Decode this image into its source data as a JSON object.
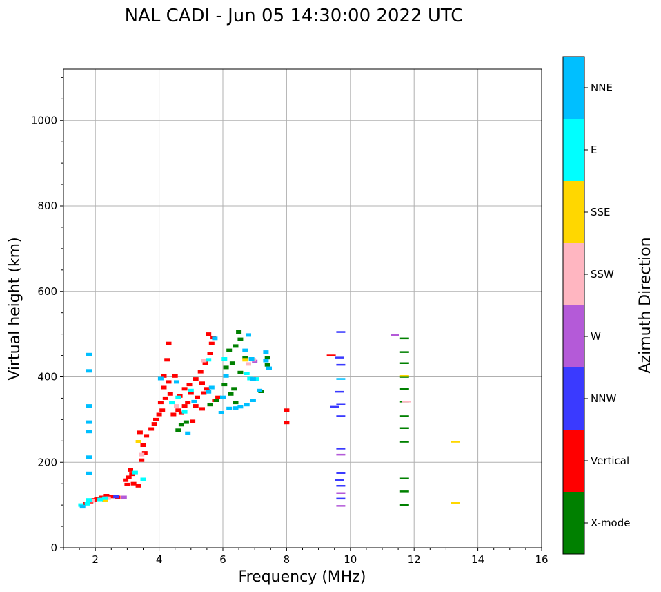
{
  "chart_data": {
    "type": "scatter",
    "title": "NAL CADI - Jun 05 14:30:00 2022 UTC",
    "xlabel": "Frequency (MHz)",
    "ylabel": "Virtual height (km)",
    "xlim": [
      1,
      16
    ],
    "ylim": [
      0,
      1120
    ],
    "xticks": [
      "2",
      "4",
      "6",
      "8",
      "10",
      "12",
      "14",
      "16"
    ],
    "yticks": [
      "0",
      "200",
      "400",
      "600",
      "800",
      "1000"
    ],
    "grid": true,
    "colorbar": {
      "label": "Azimuth Direction",
      "categories": [
        {
          "name": "X-mode",
          "color": "#008000"
        },
        {
          "name": "Vertical",
          "color": "#ff0000"
        },
        {
          "name": "NNW",
          "color": "#3a3aff"
        },
        {
          "name": "W",
          "color": "#b45ad8"
        },
        {
          "name": "SSW",
          "color": "#ffb6c1"
        },
        {
          "name": "SSE",
          "color": "#ffd700"
        },
        {
          "name": "E",
          "color": "#00ffff"
        },
        {
          "name": "NNE",
          "color": "#00bfff"
        }
      ]
    },
    "series": [
      {
        "name": "Vertical",
        "points": [
          [
            1.7,
            104
          ],
          [
            1.85,
            108
          ],
          [
            1.95,
            112
          ],
          [
            2.05,
            115
          ],
          [
            2.2,
            118
          ],
          [
            2.35,
            122
          ],
          [
            2.5,
            120
          ],
          [
            2.7,
            118
          ],
          [
            2.95,
            158
          ],
          [
            3.05,
            165
          ],
          [
            3.15,
            172
          ],
          [
            3.0,
            148
          ],
          [
            3.2,
            150
          ],
          [
            3.35,
            145
          ],
          [
            3.1,
            182
          ],
          [
            3.45,
            205
          ],
          [
            3.55,
            222
          ],
          [
            3.5,
            240
          ],
          [
            3.6,
            262
          ],
          [
            3.4,
            270
          ],
          [
            3.75,
            278
          ],
          [
            3.85,
            290
          ],
          [
            3.9,
            300
          ],
          [
            4.0,
            312
          ],
          [
            4.1,
            322
          ],
          [
            4.05,
            340
          ],
          [
            4.2,
            350
          ],
          [
            4.35,
            360
          ],
          [
            4.15,
            375
          ],
          [
            4.3,
            388
          ],
          [
            4.15,
            402
          ],
          [
            4.25,
            440
          ],
          [
            4.3,
            478
          ],
          [
            4.5,
            402
          ],
          [
            4.45,
            312
          ],
          [
            4.6,
            322
          ],
          [
            4.7,
            315
          ],
          [
            4.8,
            332
          ],
          [
            4.9,
            340
          ],
          [
            4.65,
            355
          ],
          [
            4.8,
            372
          ],
          [
            5.0,
            362
          ],
          [
            5.2,
            352
          ],
          [
            5.35,
            325
          ],
          [
            5.15,
            332
          ],
          [
            5.05,
            296
          ],
          [
            4.95,
            382
          ],
          [
            5.15,
            395
          ],
          [
            5.35,
            385
          ],
          [
            5.5,
            372
          ],
          [
            5.3,
            412
          ],
          [
            5.45,
            432
          ],
          [
            5.6,
            455
          ],
          [
            5.65,
            478
          ],
          [
            5.55,
            500
          ],
          [
            5.7,
            492
          ],
          [
            5.75,
            345
          ],
          [
            5.4,
            362
          ],
          [
            5.85,
            352
          ],
          [
            8.0,
            322
          ],
          [
            8.0,
            293
          ],
          [
            9.4,
            450
          ]
        ]
      },
      {
        "name": "X-mode",
        "points": [
          [
            4.6,
            275
          ],
          [
            4.7,
            288
          ],
          [
            4.85,
            294
          ],
          [
            5.6,
            335
          ],
          [
            5.8,
            345
          ],
          [
            6.05,
            382
          ],
          [
            6.25,
            360
          ],
          [
            6.35,
            372
          ],
          [
            6.4,
            340
          ],
          [
            6.1,
            422
          ],
          [
            6.3,
            432
          ],
          [
            6.2,
            462
          ],
          [
            6.4,
            472
          ],
          [
            6.55,
            488
          ],
          [
            6.5,
            505
          ],
          [
            6.7,
            445
          ],
          [
            6.55,
            410
          ],
          [
            7.2,
            366
          ],
          [
            7.4,
            428
          ],
          [
            7.4,
            445
          ],
          [
            11.7,
            490
          ],
          [
            11.7,
            458
          ],
          [
            11.7,
            432
          ],
          [
            11.7,
            400
          ],
          [
            11.7,
            372
          ],
          [
            11.7,
            342
          ],
          [
            11.7,
            308
          ],
          [
            11.7,
            280
          ],
          [
            11.7,
            248
          ],
          [
            11.7,
            162
          ],
          [
            11.7,
            132
          ],
          [
            11.7,
            100
          ]
        ]
      },
      {
        "name": "NNW",
        "points": [
          [
            2.65,
            120
          ],
          [
            9.7,
            505
          ],
          [
            9.65,
            445
          ],
          [
            9.7,
            428
          ],
          [
            9.65,
            365
          ],
          [
            9.7,
            335
          ],
          [
            9.7,
            308
          ],
          [
            9.7,
            232
          ],
          [
            9.7,
            175
          ],
          [
            9.65,
            158
          ],
          [
            9.7,
            145
          ],
          [
            9.7,
            115
          ],
          [
            9.5,
            330
          ]
        ]
      },
      {
        "name": "W",
        "points": [
          [
            2.9,
            118
          ],
          [
            9.7,
            218
          ],
          [
            9.7,
            128
          ],
          [
            9.7,
            98
          ],
          [
            11.4,
            498
          ],
          [
            7.0,
            436
          ]
        ]
      },
      {
        "name": "SSW",
        "points": [
          [
            1.9,
            110
          ],
          [
            2.4,
            116
          ],
          [
            3.45,
            218
          ],
          [
            4.55,
            332
          ],
          [
            5.4,
            438
          ],
          [
            6.95,
            440
          ],
          [
            6.8,
            430
          ],
          [
            11.75,
            342
          ]
        ]
      },
      {
        "name": "SSE",
        "points": [
          [
            2.3,
            112
          ],
          [
            3.35,
            248
          ],
          [
            6.7,
            440
          ],
          [
            13.3,
            248
          ],
          [
            13.3,
            105
          ],
          [
            11.7,
            402
          ]
        ]
      },
      {
        "name": "E",
        "points": [
          [
            1.55,
            100
          ],
          [
            1.75,
            103
          ],
          [
            1.8,
            112
          ],
          [
            2.15,
            113
          ],
          [
            2.3,
            116
          ],
          [
            3.25,
            176
          ],
          [
            3.5,
            160
          ],
          [
            4.4,
            340
          ],
          [
            4.6,
            352
          ],
          [
            4.8,
            318
          ],
          [
            5.0,
            368
          ],
          [
            6.75,
            408
          ],
          [
            6.85,
            396
          ],
          [
            7.05,
            395
          ],
          [
            6.05,
            442
          ],
          [
            5.55,
            440
          ]
        ]
      },
      {
        "name": "NNE",
        "points": [
          [
            1.8,
            452
          ],
          [
            1.8,
            414
          ],
          [
            1.8,
            332
          ],
          [
            1.8,
            294
          ],
          [
            1.8,
            272
          ],
          [
            1.8,
            212
          ],
          [
            1.8,
            174
          ],
          [
            1.6,
            96
          ],
          [
            4.05,
            396
          ],
          [
            4.55,
            388
          ],
          [
            4.9,
            268
          ],
          [
            5.1,
            342
          ],
          [
            5.55,
            365
          ],
          [
            5.65,
            375
          ],
          [
            5.95,
            316
          ],
          [
            6.0,
            352
          ],
          [
            6.2,
            326
          ],
          [
            6.4,
            327
          ],
          [
            6.55,
            330
          ],
          [
            6.75,
            335
          ],
          [
            6.95,
            345
          ],
          [
            7.15,
            368
          ],
          [
            6.9,
            442
          ],
          [
            7.35,
            458
          ],
          [
            7.45,
            420
          ],
          [
            7.35,
            438
          ],
          [
            6.7,
            462
          ],
          [
            6.8,
            498
          ],
          [
            6.95,
            395
          ],
          [
            9.7,
            395
          ],
          [
            6.1,
            402
          ],
          [
            5.75,
            490
          ]
        ]
      }
    ]
  }
}
